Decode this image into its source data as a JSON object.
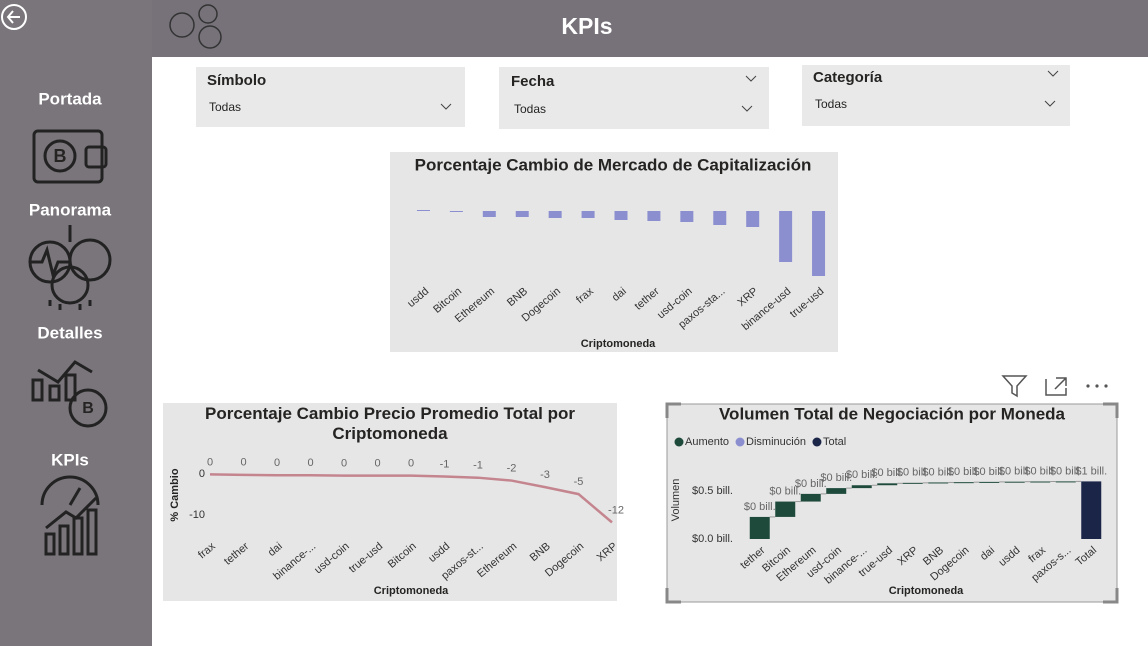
{
  "sidebar": {
    "nav": [
      "Portada",
      "Panorama",
      "Detalles",
      "KPIs"
    ]
  },
  "header": {
    "title": "KPIs"
  },
  "filters": [
    {
      "label": "Símbolo",
      "value": "Todas"
    },
    {
      "label": "Fecha",
      "value": "Todas"
    },
    {
      "label": "Categoría",
      "value": "Todas"
    }
  ],
  "chart_data": [
    {
      "type": "bar",
      "title": "Porcentaje Cambio de Mercado de Capitalización",
      "xlabel": "Criptomoneda",
      "categories": [
        "usdd",
        "Bitcoin",
        "Ethereum",
        "BNB",
        "Dogecoin",
        "frax",
        "dai",
        "tether",
        "usd-coin",
        "paxos-sta...",
        "XRP",
        "binance-usd",
        "true-usd"
      ],
      "values": [
        0.2,
        -0.2,
        -1.2,
        -1.2,
        -1.4,
        -1.4,
        -1.8,
        -2,
        -2.2,
        -2.8,
        -3.2,
        -10.2,
        -13
      ],
      "color": "#8b8fd0",
      "ylim": [
        -14,
        1
      ]
    },
    {
      "type": "line",
      "title": "Porcentaje Cambio Precio Promedio Total por Criptomoneda",
      "xlabel": "Criptomoneda",
      "ylabel": "% Cambio",
      "categories": [
        "frax",
        "tether",
        "dai",
        "binance-...",
        "usd-coin",
        "true-usd",
        "Bitcoin",
        "usdd",
        "paxos-st...",
        "Ethereum",
        "BNB",
        "Dogecoin",
        "XRP"
      ],
      "values": [
        -0.1,
        -0.2,
        -0.3,
        -0.3,
        -0.4,
        -0.4,
        -0.4,
        -0.6,
        -0.9,
        -1.6,
        -3.2,
        -4.9,
        -11.8
      ],
      "value_labels": [
        "0",
        "0",
        "0",
        "0",
        "0",
        "0",
        "0",
        "-1",
        "-1",
        "-2",
        "-3",
        "-5",
        "-12"
      ],
      "color": "#c4858f",
      "ylim": [
        -13,
        3
      ],
      "yticks": [
        -10,
        0
      ]
    },
    {
      "type": "waterfall",
      "title": "Volumen Total de Negociación por Moneda",
      "xlabel": "Criptomoneda",
      "ylabel": "Volumen",
      "legend": [
        {
          "name": "Aumento",
          "color": "#1e4a3c"
        },
        {
          "name": "Disminución",
          "color": "#8b8fd0"
        },
        {
          "name": "Total",
          "color": "#1b2548"
        }
      ],
      "categories": [
        "tether",
        "Bitcoin",
        "Ethereum",
        "usd-coin",
        "binance-...",
        "true-usd",
        "XRP",
        "BNB",
        "Dogecoin",
        "dai",
        "usdd",
        "frax",
        "paxos-s...",
        "Total"
      ],
      "measure": [
        "relative",
        "relative",
        "relative",
        "relative",
        "relative",
        "relative",
        "relative",
        "relative",
        "relative",
        "relative",
        "relative",
        "relative",
        "relative",
        "total"
      ],
      "values": [
        0.23,
        0.16,
        0.08,
        0.06,
        0.03,
        0.02,
        0.005,
        0.004,
        0.003,
        0.003,
        0.002,
        0.002,
        0.001,
        0.6
      ],
      "value_labels": [
        "$0 bill.",
        "$0 bill.",
        "$0 bill.",
        "$0 bill.",
        "$0 bill.",
        "$0 bill.",
        "$0 bill.",
        "$0 bill.",
        "$0 bill.",
        "$0 bill.",
        "$0 bill.",
        "$0 bill.",
        "$0 bill.",
        "$1 bill."
      ],
      "ylim": [
        0,
        0.65
      ],
      "yticks": [
        {
          "value": 0,
          "label": "$0.0 bill."
        },
        {
          "value": 0.5,
          "label": "$0.5 bill."
        }
      ]
    }
  ]
}
